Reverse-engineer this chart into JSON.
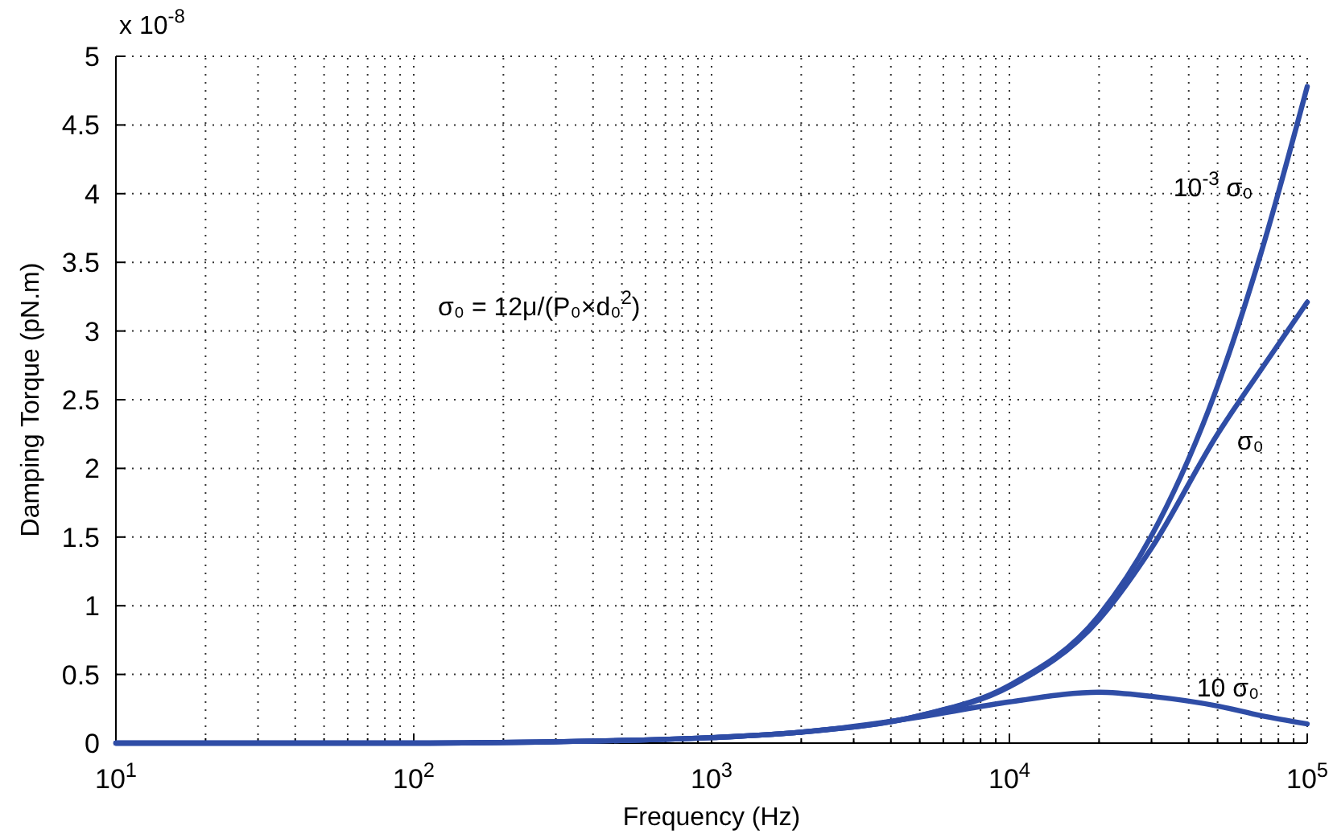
{
  "chart_data": {
    "type": "line",
    "xlabel": "Frequency (Hz)",
    "ylabel": "Damping Torque (pN.m)",
    "annotations": [
      "x 10$^{-8}$",
      "σ₀ = 12μ/(P₀×d₀$^{2}$)"
    ],
    "log": "x",
    "grid": true,
    "marker": "none",
    "line_style": "solid",
    "xlim": [
      10,
      100000
    ],
    "ylim": [
      0,
      5
    ],
    "xticks": [
      {
        "value": 10,
        "label": "10$^{1}$"
      },
      {
        "value": 20,
        "label": null
      },
      {
        "value": 30,
        "label": null
      },
      {
        "value": 40,
        "label": null
      },
      {
        "value": 50,
        "label": null
      },
      {
        "value": 60,
        "label": null
      },
      {
        "value": 70,
        "label": null
      },
      {
        "value": 80,
        "label": null
      },
      {
        "value": 90,
        "label": null
      },
      {
        "value": 100,
        "label": "10$^{2}$"
      },
      {
        "value": 200,
        "label": null
      },
      {
        "value": 300,
        "label": null
      },
      {
        "value": 400,
        "label": null
      },
      {
        "value": 500,
        "label": null
      },
      {
        "value": 600,
        "label": null
      },
      {
        "value": 700,
        "label": null
      },
      {
        "value": 800,
        "label": null
      },
      {
        "value": 900,
        "label": null
      },
      {
        "value": 1000,
        "label": "10$^{3}$"
      },
      {
        "value": 2000,
        "label": null
      },
      {
        "value": 3000,
        "label": null
      },
      {
        "value": 4000,
        "label": null
      },
      {
        "value": 5000,
        "label": null
      },
      {
        "value": 6000,
        "label": null
      },
      {
        "value": 7000,
        "label": null
      },
      {
        "value": 8000,
        "label": null
      },
      {
        "value": 9000,
        "label": null
      },
      {
        "value": 10000,
        "label": "10$^{4}$"
      },
      {
        "value": 20000,
        "label": null
      },
      {
        "value": 30000,
        "label": null
      },
      {
        "value": 40000,
        "label": null
      },
      {
        "value": 50000,
        "label": null
      },
      {
        "value": 60000,
        "label": null
      },
      {
        "value": 70000,
        "label": null
      },
      {
        "value": 80000,
        "label": null
      },
      {
        "value": 90000,
        "label": null
      },
      {
        "value": 100000,
        "label": "10$^{5}$"
      }
    ],
    "yticks": [
      0,
      0.5,
      1,
      1.5,
      2,
      2.5,
      3,
      3.5,
      4,
      4.5,
      5
    ],
    "x": [
      10,
      100,
      300,
      1000,
      2000,
      5000,
      10000,
      20000,
      30000,
      50000,
      70000,
      100000
    ],
    "series": [
      {
        "name": "10$^{-3}$ σ₀",
        "color": "#2f4da6",
        "values": [
          0,
          0,
          0.01,
          0.04,
          0.08,
          0.2,
          0.42,
          0.93,
          1.51,
          2.6,
          3.57,
          4.78
        ]
      },
      {
        "name": "σ₀",
        "color": "#2f4da6",
        "values": [
          0,
          0,
          0.01,
          0.04,
          0.08,
          0.2,
          0.41,
          0.9,
          1.42,
          2.25,
          2.72,
          3.21
        ]
      },
      {
        "name": "10 σ₀",
        "color": "#2f4da6",
        "values": [
          0,
          0,
          0.01,
          0.04,
          0.08,
          0.19,
          0.3,
          0.37,
          0.34,
          0.27,
          0.2,
          0.14
        ]
      }
    ]
  }
}
